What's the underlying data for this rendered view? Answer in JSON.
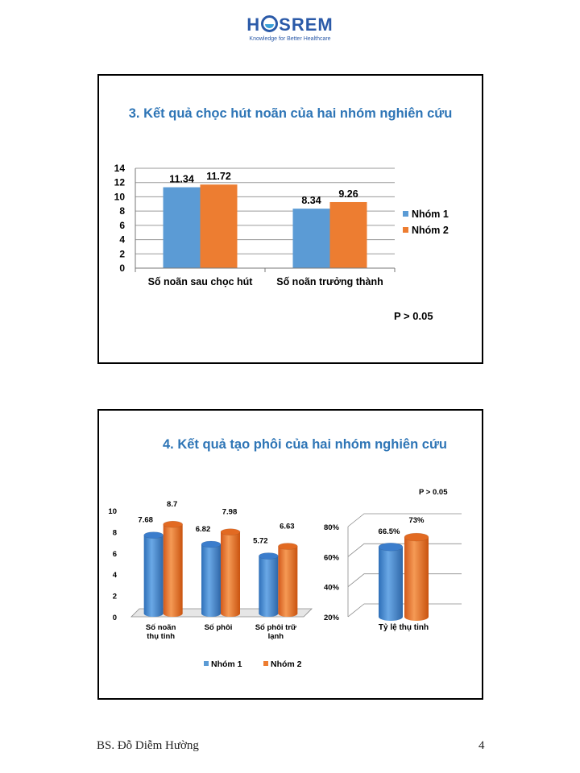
{
  "header": {
    "logo_pre": "H",
    "logo_post": "SREM",
    "logo_text": "HOSREM",
    "tagline": "Knowledge for Better Healthcare"
  },
  "colors": {
    "series1": "#5b9bd5",
    "series2": "#ed7d31",
    "title": "#2e75b6"
  },
  "footer": {
    "author": "BS. Đỗ Diễm Hường",
    "page_number": "4"
  },
  "chart_data": [
    {
      "type": "bar",
      "title": "3. Kết quả chọc hút noãn của hai nhóm nghiên cứu",
      "categories": [
        "Số noãn sau chọc hút",
        "Số noãn trưởng thành"
      ],
      "series": [
        {
          "name": "Nhóm 1",
          "values": [
            11.34,
            8.34
          ],
          "labels": [
            "11.34",
            "8.34"
          ]
        },
        {
          "name": "Nhóm 2",
          "values": [
            11.72,
            9.26
          ],
          "labels": [
            "11.72",
            "9.26"
          ]
        }
      ],
      "ylim": [
        0,
        14
      ],
      "yticks": [
        "0",
        "2",
        "4",
        "6",
        "8",
        "10",
        "12",
        "14"
      ],
      "legend": "right",
      "annotation": "P > 0.05"
    },
    {
      "type": "bar",
      "title": "4. Kết quả tạo phôi của hai nhóm nghiên cứu",
      "categories": [
        [
          "Số noãn",
          "thụ tinh"
        ],
        [
          "Số phôi"
        ],
        [
          "Số phôi trữ",
          "lạnh"
        ]
      ],
      "series": [
        {
          "name": "Nhóm 1",
          "values": [
            7.68,
            6.82,
            5.72
          ],
          "labels": [
            "7.68",
            "6.82",
            "5.72"
          ]
        },
        {
          "name": "Nhóm 2",
          "values": [
            8.7,
            7.98,
            6.63
          ],
          "labels": [
            "8.7",
            "7.98",
            "6.63"
          ]
        }
      ],
      "ylim": [
        0,
        10
      ],
      "yticks": [
        "0",
        "2",
        "4",
        "6",
        "8",
        "10"
      ],
      "legend": "bottom"
    },
    {
      "type": "bar",
      "categories": [
        "Tỷ lệ thụ tinh"
      ],
      "series": [
        {
          "name": "Nhóm 1",
          "values": [
            66.5
          ],
          "labels": [
            "66.5%"
          ]
        },
        {
          "name": "Nhóm 2",
          "values": [
            73
          ],
          "labels": [
            "73%"
          ]
        }
      ],
      "ylim": [
        20,
        80
      ],
      "yticks": [
        "20%",
        "40%",
        "60%",
        "80%"
      ],
      "annotation": "P > 0.05"
    }
  ]
}
